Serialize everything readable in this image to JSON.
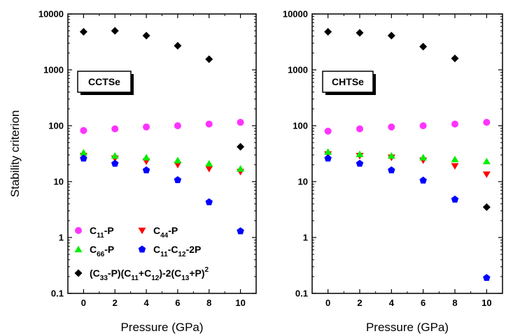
{
  "chart_data": [
    {
      "type": "scatter",
      "label": "CCTSe",
      "xlabel": "Pressure (GPa)",
      "ylabel": "Stability criterion",
      "x_ticks": [
        "0",
        "2",
        "4",
        "6",
        "8",
        "10"
      ],
      "y_ticks": [
        "0.1",
        "1",
        "10",
        "100",
        "1000",
        "10000"
      ],
      "xlim": [
        -1,
        11
      ],
      "ylim": [
        0.1,
        10000
      ],
      "yscale": "log",
      "legend": {
        "placement": "bottom-left",
        "entries": [
          {
            "series": "c11",
            "sub": [
              "C",
              "11",
              "-P"
            ]
          },
          {
            "series": "c44",
            "sub": [
              "C",
              "44",
              "-P"
            ]
          },
          {
            "series": "c66",
            "sub": [
              "C",
              "66",
              "-P"
            ]
          },
          {
            "series": "c11c12",
            "sub": [
              "C",
              "11",
              "-C",
              "12",
              "-2P"
            ]
          },
          {
            "series": "combo",
            "sub": [
              "(C",
              "33",
              "-P)(C",
              "11",
              "+C",
              "12",
              ")-2(C",
              "13",
              "+P)",
              "2"
            ]
          }
        ]
      },
      "x": [
        0,
        2,
        4,
        6,
        8,
        10
      ],
      "series": [
        {
          "key": "c11",
          "color": "#ff33ff",
          "marker": "circle",
          "values": [
            82,
            88,
            95,
            100,
            107,
            115
          ]
        },
        {
          "key": "c44",
          "color": "#ff0000",
          "marker": "triangle-down",
          "values": [
            29,
            26,
            23,
            20,
            17,
            15
          ]
        },
        {
          "key": "c66",
          "color": "#00ee00",
          "marker": "triangle-up",
          "values": [
            33,
            29,
            27,
            24,
            21,
            17
          ]
        },
        {
          "key": "c11c12",
          "color": "#0000ff",
          "marker": "pentagon",
          "values": [
            26,
            21,
            16,
            10.7,
            4.3,
            1.3
          ]
        },
        {
          "key": "combo",
          "color": "#000000",
          "marker": "diamond",
          "values": [
            4800,
            5000,
            4100,
            2700,
            1550,
            42
          ]
        }
      ]
    },
    {
      "type": "scatter",
      "label": "CHTSe",
      "xlabel": "Pressure (GPa)",
      "ylabel": "",
      "x_ticks": [
        "0",
        "2",
        "4",
        "6",
        "8",
        "10"
      ],
      "y_ticks": [
        "0.1",
        "1",
        "10",
        "100",
        "1000",
        "10000"
      ],
      "xlim": [
        -1,
        11
      ],
      "ylim": [
        0.1,
        10000
      ],
      "yscale": "log",
      "x": [
        0,
        2,
        4,
        6,
        8,
        10
      ],
      "series": [
        {
          "key": "c11",
          "color": "#ff33ff",
          "marker": "circle",
          "values": [
            80,
            88,
            95,
            100,
            107,
            115
          ]
        },
        {
          "key": "c44",
          "color": "#ff0000",
          "marker": "triangle-down",
          "values": [
            31,
            29,
            27,
            24,
            19,
            13.5
          ]
        },
        {
          "key": "c66",
          "color": "#00ee00",
          "marker": "triangle-up",
          "values": [
            34,
            31,
            29,
            27,
            25,
            23
          ]
        },
        {
          "key": "c11c12",
          "color": "#0000ff",
          "marker": "pentagon",
          "values": [
            26,
            21,
            16,
            10.5,
            4.8,
            0.19
          ]
        },
        {
          "key": "combo",
          "color": "#000000",
          "marker": "diamond",
          "values": [
            4800,
            4600,
            4100,
            2600,
            1600,
            3.5
          ]
        }
      ]
    }
  ]
}
